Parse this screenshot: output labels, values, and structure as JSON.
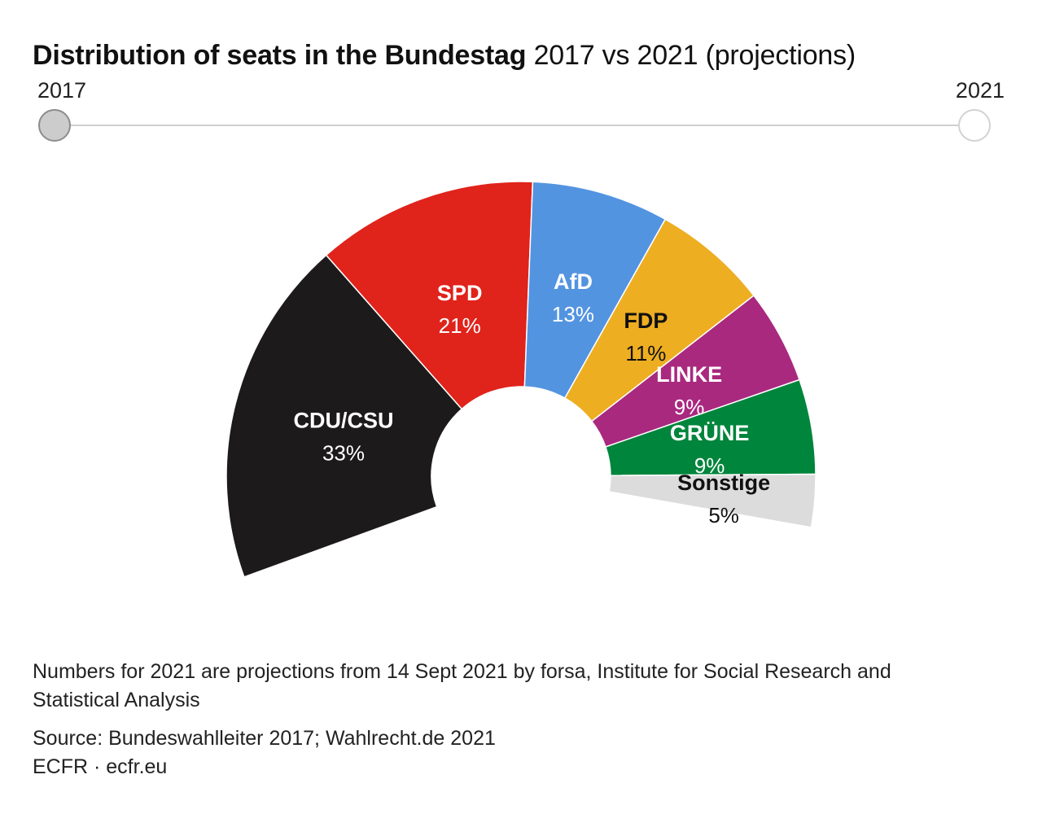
{
  "title": {
    "main": "Distribution of seats in the Bundestag",
    "sub": " 2017 vs 2021 (projections)"
  },
  "slider": {
    "left_label": "2017",
    "right_label": "2021",
    "selected": "2017"
  },
  "chart_data": {
    "type": "pie",
    "variant": "semicircle-parliament",
    "series": [
      {
        "name": "CDU/CSU",
        "label": "33%",
        "value": 33,
        "color": "#1d1a1b",
        "label_color": "#ffffff"
      },
      {
        "name": "SPD",
        "label": "21%",
        "value": 21,
        "color": "#e0231b",
        "label_color": "#ffffff"
      },
      {
        "name": "AfD",
        "label": "13%",
        "value": 13,
        "color": "#5394e0",
        "label_color": "#ffffff"
      },
      {
        "name": "FDP",
        "label": "11%",
        "value": 11,
        "color": "#edae22",
        "label_color": "#111111"
      },
      {
        "name": "LINKE",
        "label": "9%",
        "value": 9,
        "color": "#a9297f",
        "label_color": "#ffffff"
      },
      {
        "name": "GRÜNE",
        "label": "9%",
        "value": 9,
        "color": "#00853c",
        "label_color": "#ffffff"
      },
      {
        "name": "Sonstige",
        "label": "5%",
        "value": 5,
        "color": "#dcdcdc",
        "label_color": "#111111"
      }
    ]
  },
  "footnote": "Numbers for 2021 are projections from 14 Sept 2021 by forsa, Institute for Social Research and Statistical Analysis",
  "source": "Source: Bundeswahlleiter 2017; Wahlrecht.de 2021",
  "credit": "ECFR · ecfr.eu"
}
